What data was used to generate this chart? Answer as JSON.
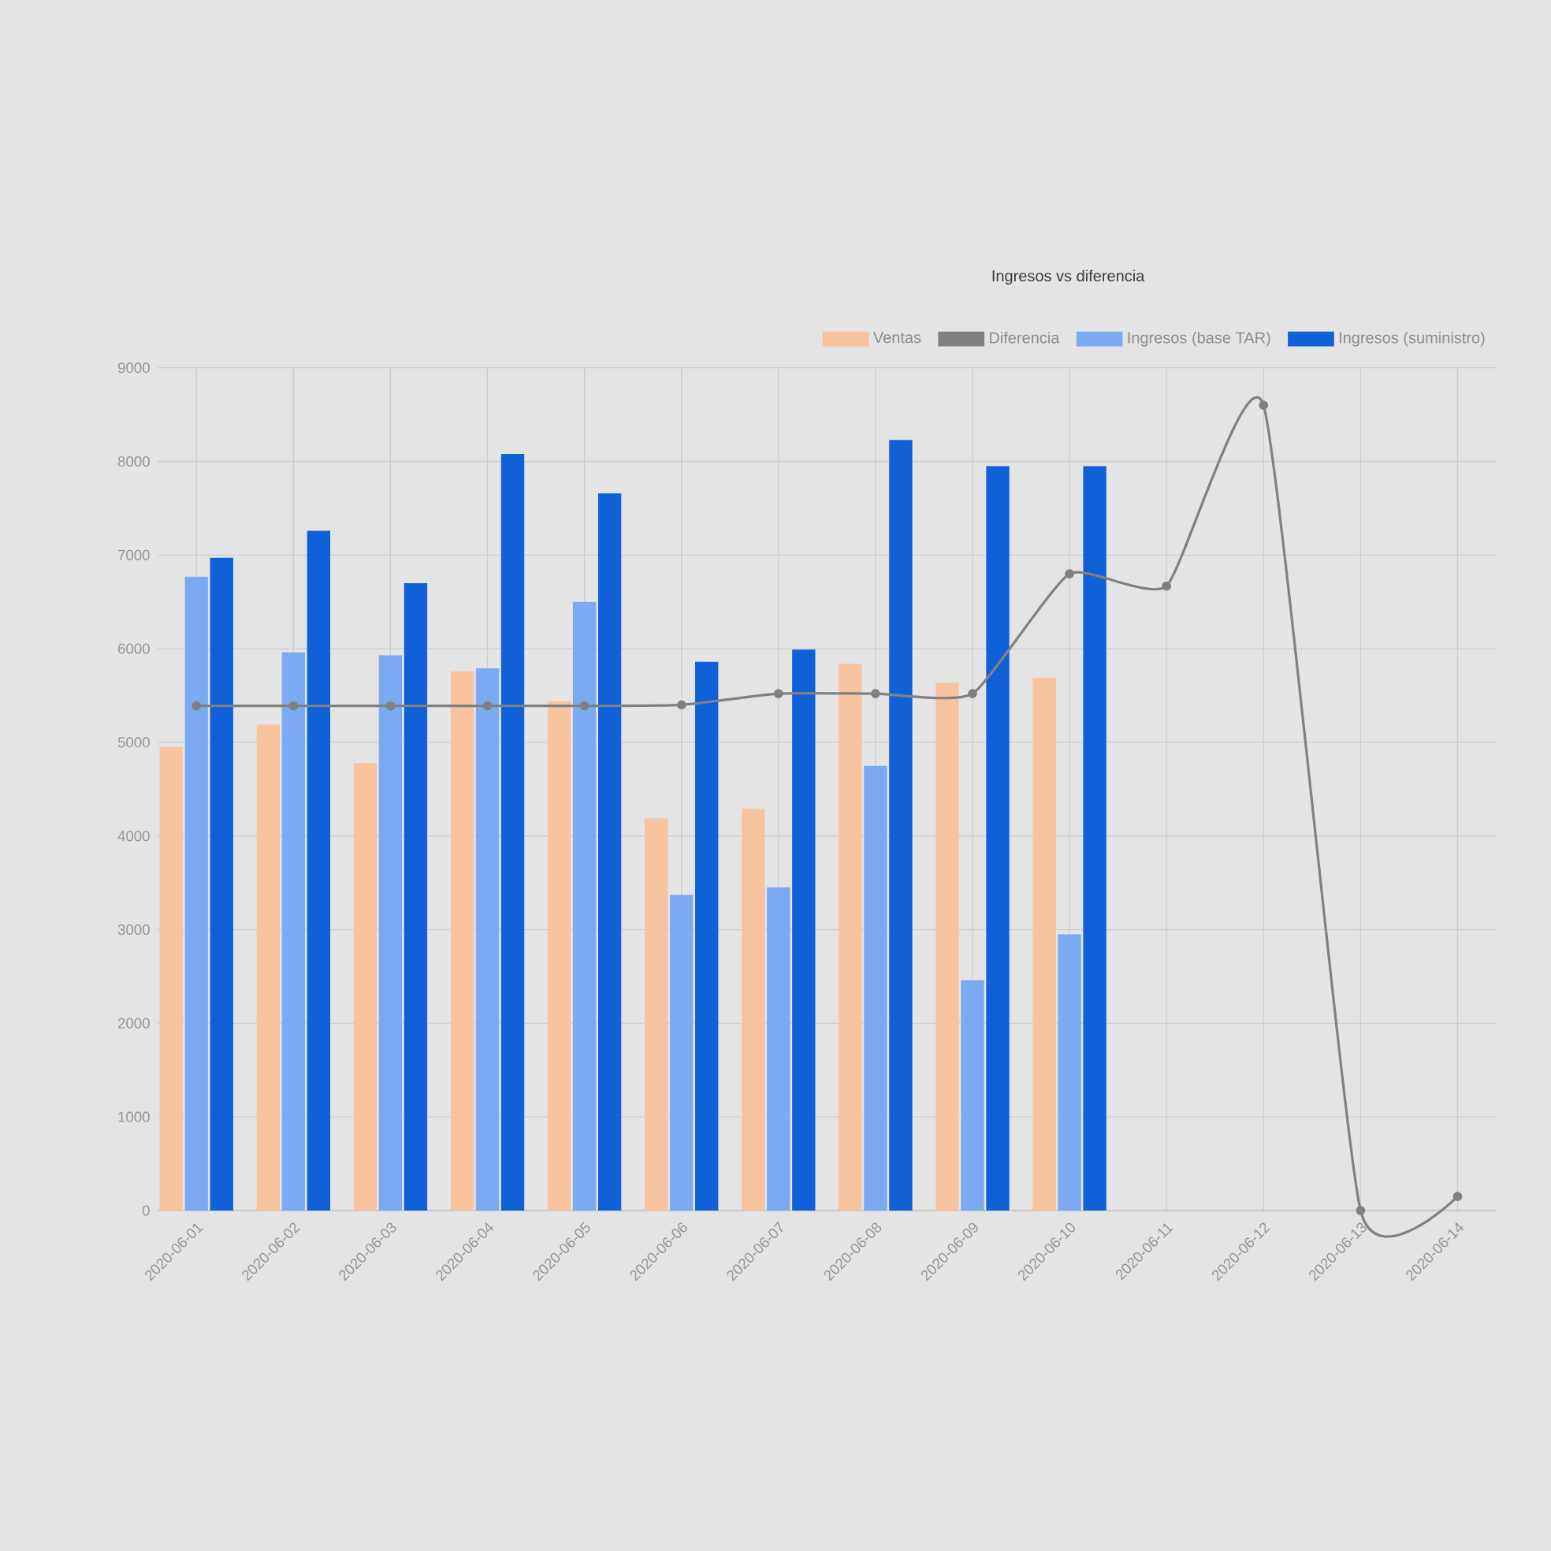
{
  "chart_data": {
    "type": "bar",
    "title": "Ingresos vs diferencia",
    "categories": [
      "2020-06-01",
      "2020-06-02",
      "2020-06-03",
      "2020-06-04",
      "2020-06-05",
      "2020-06-06",
      "2020-06-07",
      "2020-06-08",
      "2020-06-09",
      "2020-06-10",
      "2020-06-11",
      "2020-06-12",
      "2020-06-13",
      "2020-06-14"
    ],
    "series": [
      {
        "name": "Ventas",
        "color": "#f8c4a0",
        "values": [
          4950,
          5190,
          4780,
          5760,
          5440,
          4190,
          4290,
          5840,
          5640,
          5690,
          null,
          null,
          null,
          null
        ]
      },
      {
        "name": "Diferencia",
        "type": "line",
        "color": "#808080",
        "values": [
          5390,
          5390,
          5390,
          5390,
          5390,
          5400,
          5520,
          5520,
          5520,
          6800,
          6670,
          8600,
          0,
          150
        ]
      },
      {
        "name": "Ingresos (base TAR)",
        "color": "#7baaf2",
        "values": [
          6770,
          5960,
          5930,
          5790,
          6500,
          3370,
          3450,
          4750,
          2460,
          2950,
          null,
          null,
          null,
          null
        ]
      },
      {
        "name": "Ingresos (suministro)",
        "color": "#1060d8",
        "values": [
          6970,
          7260,
          6700,
          8080,
          7660,
          5860,
          5990,
          8230,
          7950,
          7950,
          null,
          null,
          null,
          null
        ]
      }
    ],
    "ylim": [
      0,
      9000
    ],
    "yticks": [
      0,
      1000,
      2000,
      3000,
      4000,
      5000,
      6000,
      7000,
      8000,
      9000
    ],
    "grid": true,
    "legend": "top right",
    "marker": "circle"
  }
}
